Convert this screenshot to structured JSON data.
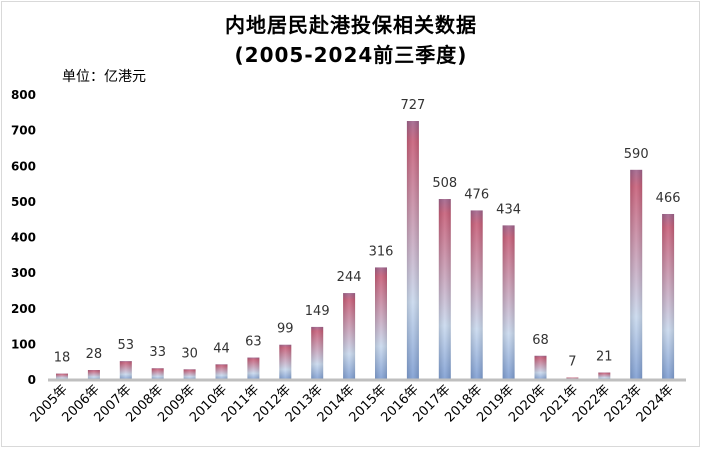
{
  "chart_data": {
    "type": "bar",
    "title": "内地居民赴港投保相关数据",
    "subtitle": "(2005-2024前三季度)",
    "unit_label": "单位：亿港元",
    "xlabel": "",
    "ylabel": "",
    "categories": [
      "2005年",
      "2006年",
      "2007年",
      "2008年",
      "2009年",
      "2010年",
      "2011年",
      "2012年",
      "2013年",
      "2014年",
      "2015年",
      "2016年",
      "2017年",
      "2018年",
      "2019年",
      "2020年",
      "2021年",
      "2022年",
      "2023年",
      "2024年"
    ],
    "values": [
      18,
      28,
      53,
      33,
      30,
      44,
      63,
      99,
      149,
      244,
      316,
      727,
      508,
      476,
      434,
      68,
      7,
      21,
      590,
      466
    ],
    "ylim": [
      0,
      800
    ],
    "yticks": [
      0,
      100,
      200,
      300,
      400,
      500,
      600,
      700,
      800
    ],
    "grid": false,
    "legend": "none",
    "colors": {
      "bar_top": "#c8607a",
      "bar_mid": "#c9d9ee",
      "bar_bottom": "#7d9dd2",
      "axis": "#bfbfbf"
    }
  }
}
